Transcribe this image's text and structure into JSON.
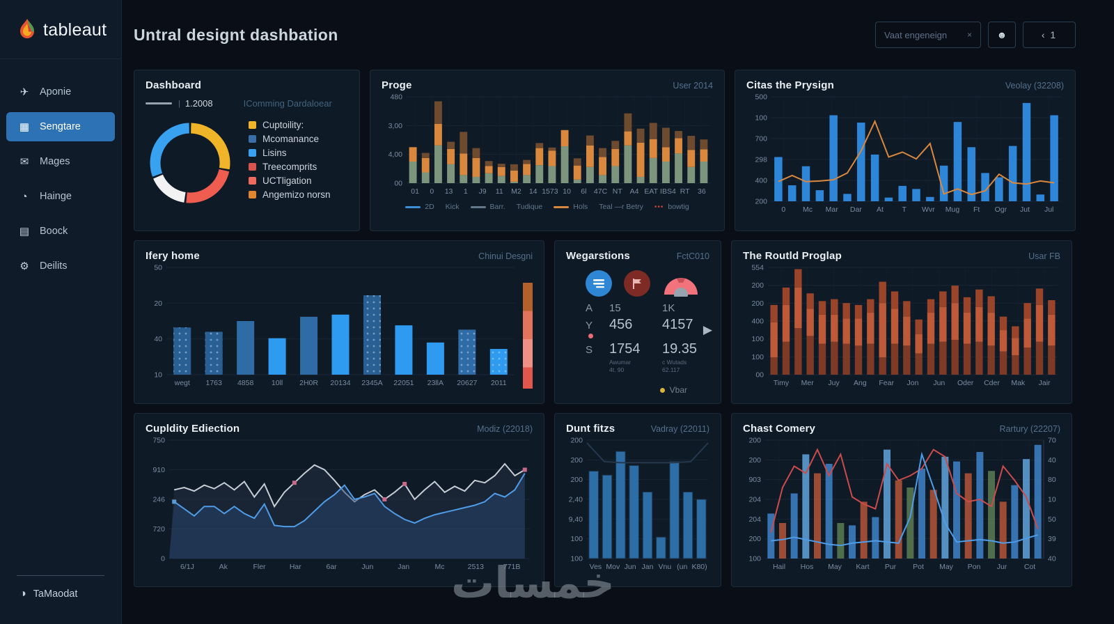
{
  "app": {
    "logo_text": "tableaut",
    "watermark": "خمسات"
  },
  "sidebar": {
    "items": [
      {
        "label": "Aponie",
        "icon": "plane-icon",
        "active": false
      },
      {
        "label": "Sengtare",
        "icon": "grid-chart-icon",
        "active": true
      },
      {
        "label": "Mages",
        "icon": "mail-icon",
        "active": false
      },
      {
        "label": "Hainge",
        "icon": "sync-icon",
        "active": false
      },
      {
        "label": "Boock",
        "icon": "book-icon",
        "active": false
      },
      {
        "label": "Deilits",
        "icon": "gear-icon",
        "active": false
      }
    ],
    "footer_label": "TaMaodat"
  },
  "header": {
    "title": "Untral designt dashbation",
    "search_value": "Vaat engeneign",
    "search_icon": "×",
    "pager_label": "‹ 1"
  },
  "cards": {
    "dashboard": {
      "title": "Dashboard",
      "ref_value": "1.2008",
      "ref_note": "IComming Dardaloear",
      "legend": [
        {
          "color": "#f0b429",
          "label": "Cuptoility:"
        },
        {
          "color": "#3a6ea8",
          "label": "Mcomanance"
        },
        {
          "color": "#38a1f0",
          "label": "Lisins"
        },
        {
          "color": "#d9534f",
          "label": "Treecomprits"
        },
        {
          "color": "#ee6a5f",
          "label": "UCTligation"
        },
        {
          "color": "#e0862f",
          "label": "Angemizo norsn"
        }
      ]
    },
    "proge": {
      "title": "Proge",
      "subtitle": "User 2014",
      "legend": [
        {
          "swatch": "line",
          "color": "#3f8fd4",
          "label": "2D"
        },
        {
          "swatch": "none",
          "color": "",
          "label": "Kick"
        },
        {
          "swatch": "line",
          "color": "#64788c",
          "label": "Barr."
        },
        {
          "swatch": "none",
          "color": "",
          "label": "Tudique"
        },
        {
          "swatch": "line",
          "color": "#d9883d",
          "label": "Hols"
        },
        {
          "swatch": "none",
          "color": "",
          "label": "Teal —r Betry"
        },
        {
          "swatch": "dots",
          "color": "#c44536",
          "label": "bowtig"
        }
      ]
    },
    "prysign": {
      "title": "Citas the Prysign",
      "subtitle": "Veolay (32208)"
    },
    "ifery": {
      "title": "Ifery home",
      "subtitle": "Chinui Desgni"
    },
    "wegarstions": {
      "title": "Wegarstions",
      "subtitle": "FctC010",
      "rows": [
        {
          "a": "A",
          "b": "15",
          "c": "1K"
        },
        {
          "a": "Y",
          "b": "456",
          "c": "4157"
        },
        {
          "a": "S",
          "b": "1754",
          "c": "19.35"
        }
      ],
      "sub_b": "Awumar\n4t. 90",
      "sub_c": "c Wutads\n62.117",
      "legend_label": "Vbar"
    },
    "routld": {
      "title": "The Routld Proglap",
      "subtitle": "Usar FB"
    },
    "cupldity": {
      "title": "Cupldity Ediection",
      "subtitle": "Modiz (22018)"
    },
    "duntfitzs": {
      "title": "Dunt fitzs",
      "subtitle": "Vadray (22011)"
    },
    "chast": {
      "title": "Chast Comery",
      "subtitle": "Rartury (22207)"
    }
  },
  "chart_data": [
    {
      "id": "dashboard-donut",
      "type": "donut",
      "segments": [
        {
          "label": "yellow",
          "color": "#f0b429",
          "value": 28
        },
        {
          "label": "red",
          "color": "#ee5d50",
          "value": 24
        },
        {
          "label": "white",
          "color": "#f2f2f2",
          "value": 17
        },
        {
          "label": "blue",
          "color": "#38a1f0",
          "value": 31
        }
      ]
    },
    {
      "id": "proge",
      "type": "stacked_bar",
      "ylim": [
        0,
        480
      ],
      "y_ticks": [
        "480",
        "3,00",
        "4,00",
        "00"
      ],
      "x_ticks": [
        "01",
        "0",
        "13",
        "1",
        "J9",
        "11",
        "M2",
        "14",
        "1573",
        "10",
        "6l",
        "47C",
        "NT",
        "A4",
        "EAT",
        "IBS4",
        "RT",
        "36"
      ],
      "series": [
        {
          "name": "green",
          "color": "#7e957d",
          "values": [
            120,
            60,
            210,
            105,
            45,
            35,
            55,
            40,
            8,
            45,
            100,
            95,
            205,
            20,
            90,
            45,
            95,
            210,
            35,
            140,
            120,
            165,
            90,
            120
          ]
        },
        {
          "name": "orange",
          "color": "#d9883d",
          "values": [
            80,
            80,
            120,
            85,
            120,
            105,
            40,
            50,
            62,
            62,
            95,
            85,
            90,
            78,
            120,
            100,
            95,
            78,
            190,
            105,
            80,
            85,
            95,
            68
          ]
        },
        {
          "name": "brown",
          "color": "#6e4a2e",
          "values": [
            0,
            28,
            125,
            40,
            120,
            55,
            28,
            18,
            35,
            22,
            28,
            18,
            0,
            40,
            55,
            50,
            45,
            100,
            78,
            90,
            108,
            40,
            78,
            55
          ]
        }
      ]
    },
    {
      "id": "prysign",
      "type": "bar_line",
      "ylim": [
        0,
        850
      ],
      "y_ticks": [
        "500",
        "100",
        "700",
        "298",
        "400",
        "200"
      ],
      "x_ticks": [
        "0",
        "Mc",
        "Mar",
        "Dar",
        "At",
        "T",
        "Wvr",
        "Mug",
        "Ft",
        "Ogr",
        "Jut",
        "Jul"
      ],
      "bar_color": "#2e86d9",
      "bars": [
        360,
        130,
        285,
        90,
        700,
        60,
        640,
        380,
        30,
        125,
        100,
        35,
        290,
        645,
        440,
        230,
        195,
        450,
        800,
        55,
        700
      ],
      "line_color": "#d9883d",
      "line": [
        160,
        210,
        160,
        165,
        175,
        230,
        410,
        650,
        360,
        400,
        345,
        470,
        60,
        100,
        55,
        85,
        220,
        150,
        140,
        165,
        150
      ]
    },
    {
      "id": "ifery",
      "type": "bar",
      "ylim": [
        0,
        50
      ],
      "y_ticks": [
        "50",
        "20",
        "40",
        "10"
      ],
      "x_ticks": [
        "wegt",
        "1763",
        "4858",
        "10ll",
        "2H0R",
        "20134",
        "2345A",
        "22051",
        "23llA",
        "20627",
        "2011"
      ],
      "bars": [
        {
          "v": 22,
          "color": "#2a5f94",
          "dotted": true
        },
        {
          "v": 20,
          "color": "#2a5f94",
          "dotted": true
        },
        {
          "v": 25,
          "color": "#2f6ca6",
          "dotted": false
        },
        {
          "v": 17,
          "color": "#2e9bf0",
          "dotted": false
        },
        {
          "v": 27,
          "color": "#2f6ca6",
          "dotted": false
        },
        {
          "v": 28,
          "color": "#2e9bf0",
          "dotted": false
        },
        {
          "v": 37,
          "color": "#2a5f94",
          "dotted": true
        },
        {
          "v": 23,
          "color": "#2e9bf0",
          "dotted": false
        },
        {
          "v": 15,
          "color": "#2e9bf0",
          "dotted": false
        },
        {
          "v": 21,
          "color": "#2f6ca6",
          "dotted": true
        },
        {
          "v": 12,
          "color": "#2e9bf0",
          "dotted": true
        }
      ],
      "scale_colors": [
        "#b2612c",
        "#e4735b",
        "#ee9184",
        "#e2574b"
      ]
    },
    {
      "id": "routld",
      "type": "stacked_bar",
      "ylim": [
        0,
        554
      ],
      "y_ticks": [
        "554",
        "200",
        "200",
        "400",
        "100",
        "100",
        "00"
      ],
      "x_ticks": [
        "Timy",
        "Mer",
        "Juy",
        "Ang",
        "Fear",
        "Jon",
        "Jun",
        "Oder",
        "Cder",
        "Mak",
        "Jair"
      ],
      "series": [
        {
          "name": "base",
          "color": "#7e3a24",
          "values": [
            90,
            170,
            240,
            200,
            160,
            170,
            160,
            150,
            160,
            90,
            160,
            150,
            110,
            160,
            170,
            180,
            160,
            170,
            150,
            120,
            100,
            140,
            170,
            150
          ]
        },
        {
          "name": "mid",
          "color": "#bf5a38",
          "values": [
            180,
            190,
            210,
            140,
            150,
            140,
            130,
            140,
            160,
            280,
            180,
            150,
            100,
            160,
            180,
            190,
            160,
            180,
            170,
            110,
            90,
            150,
            190,
            160
          ]
        },
        {
          "name": "top",
          "color": "#9a452a",
          "values": [
            90,
            90,
            95,
            80,
            70,
            80,
            80,
            70,
            70,
            110,
            90,
            80,
            75,
            70,
            80,
            90,
            80,
            90,
            85,
            70,
            60,
            80,
            85,
            75
          ]
        }
      ]
    },
    {
      "id": "cupldity",
      "type": "lines",
      "ylim": [
        0,
        100
      ],
      "y_ticks": [
        "750",
        "910",
        "246",
        "720",
        "0"
      ],
      "x_ticks": [
        "6/1J",
        "Ak",
        "Fler",
        "Har",
        "6ar",
        "Jun",
        "Jan",
        "Mc",
        "2513",
        "771B"
      ],
      "series": [
        {
          "name": "white",
          "color": "#c6cdd4",
          "fill": "rgba(34,48,66,0.55)",
          "values": [
            58,
            60,
            57,
            62,
            59,
            64,
            58,
            65,
            52,
            63,
            44,
            56,
            64,
            72,
            79,
            75,
            66,
            56,
            48,
            54,
            58,
            50,
            56,
            63,
            50,
            58,
            65,
            56,
            61,
            57,
            66,
            64,
            70,
            80,
            70,
            75
          ]
        },
        {
          "name": "blue",
          "color": "#4f9ce8",
          "fill": "rgba(38,70,110,0.50)",
          "values": [
            48,
            42,
            36,
            44,
            44,
            38,
            44,
            38,
            34,
            46,
            28,
            27,
            27,
            32,
            40,
            48,
            54,
            62,
            50,
            52,
            55,
            44,
            38,
            33,
            30,
            34,
            37,
            39,
            41,
            43,
            45,
            48,
            55,
            52,
            58,
            72
          ]
        }
      ],
      "markers": [
        {
          "i": 0,
          "series": 1,
          "color": "#5b9bd5"
        },
        {
          "i": 12,
          "series": 0,
          "color": "#c86a8a"
        },
        {
          "i": 21,
          "series": 0,
          "color": "#c86a8a"
        },
        {
          "i": 23,
          "series": 0,
          "color": "#c86a8a"
        },
        {
          "i": 35,
          "series": 0,
          "color": "#c86a8a"
        }
      ]
    },
    {
      "id": "duntfitzs",
      "type": "bar_simple",
      "ylim": [
        0,
        210
      ],
      "y_ticks": [
        "200",
        "200",
        "200",
        "2,40",
        "9,40",
        "100",
        "100"
      ],
      "x_ticks": [
        "Ves",
        "Mov",
        "Jun",
        "Jan",
        "Vnu",
        "(un",
        "K80)"
      ],
      "color": "#2e6ea6",
      "bars": [
        155,
        148,
        190,
        165,
        118,
        38,
        172,
        118,
        105
      ],
      "topline": [
        205,
        172,
        170,
        170,
        170,
        170,
        172,
        205
      ],
      "topline_color": "#26384e"
    },
    {
      "id": "chast",
      "type": "mix",
      "ylim": [
        0,
        100
      ],
      "y_ticks": [
        "200",
        "200",
        "903",
        "204",
        "204",
        "200",
        "100"
      ],
      "y_ticks_right": [
        "70",
        "40",
        "80",
        "10",
        "50",
        "39",
        "40"
      ],
      "x_ticks": [
        "Hail",
        "Hos",
        "May",
        "Kart",
        "Pur",
        "Pot",
        "May",
        "Pon",
        "Jur",
        "Cot"
      ],
      "bars": [
        38,
        30,
        55,
        88,
        72,
        80,
        30,
        28,
        48,
        35,
        92,
        66,
        60,
        76,
        58,
        86,
        82,
        72,
        90,
        74,
        48,
        62,
        84,
        96
      ],
      "bar_colors": [
        "#3d7fc4",
        "#b05238",
        "#3d7fc4",
        "#5e9fd8",
        "#b05238",
        "#3d7fc4",
        "#5a7a52",
        "#3d7fc4",
        "#b05238",
        "#3d7fc4",
        "#5e9fd8",
        "#b05238",
        "#5a7a52",
        "#3d7fc4",
        "#b05238",
        "#5e9fd8",
        "#3d7fc4",
        "#b05238",
        "#3d7fc4",
        "#5a7a52",
        "#b05238",
        "#3d7fc4",
        "#5e9fd8",
        "#3d7fc4"
      ],
      "lines": [
        {
          "color": "#cc4b4b",
          "values": [
            22,
            60,
            78,
            72,
            92,
            70,
            88,
            52,
            46,
            42,
            80,
            66,
            70,
            76,
            92,
            86,
            55,
            48,
            50,
            44,
            78,
            66,
            52,
            25
          ]
        },
        {
          "color": "#4f9ce8",
          "values": [
            15,
            16,
            18,
            16,
            14,
            12,
            11,
            13,
            14,
            15,
            14,
            13,
            35,
            88,
            60,
            30,
            14,
            15,
            16,
            15,
            13,
            14,
            17,
            20
          ]
        }
      ]
    }
  ]
}
